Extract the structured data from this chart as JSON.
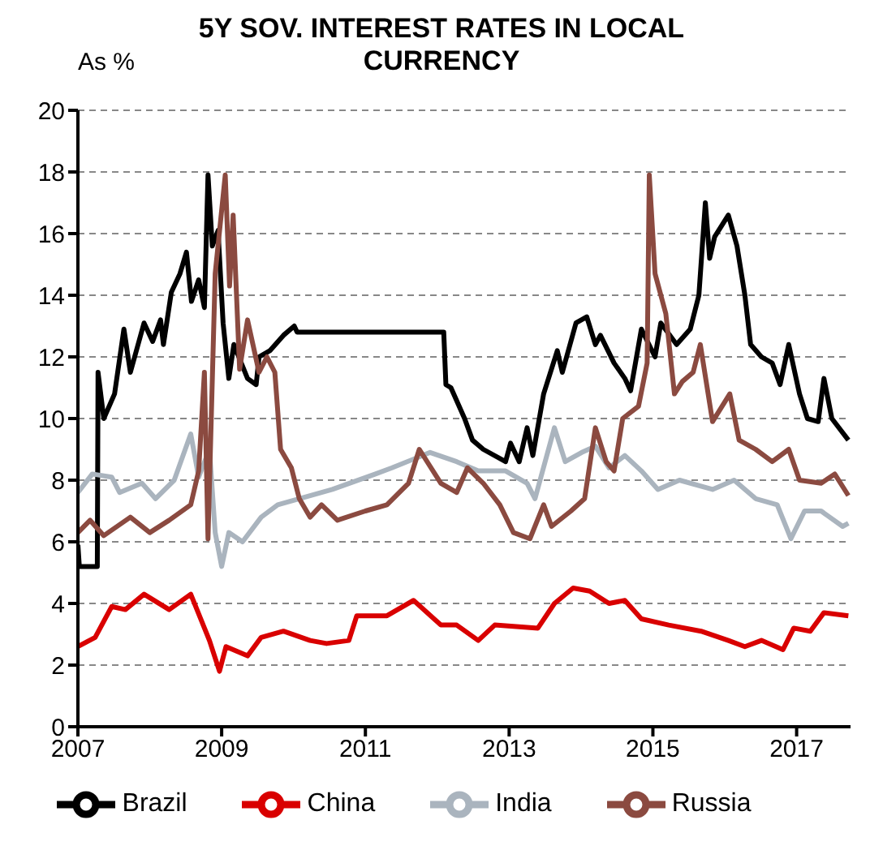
{
  "chart_data": {
    "type": "line",
    "title": "5Y SOV. INTEREST RATES IN LOCAL CURRENCY",
    "ylabel": "As %",
    "xlim": [
      2007,
      2017.75
    ],
    "xticks": [
      2007,
      2009,
      2011,
      2013,
      2015,
      2017
    ],
    "ylim": [
      0,
      20
    ],
    "yticks": [
      0,
      2,
      4,
      6,
      8,
      10,
      12,
      14,
      16,
      18,
      20
    ],
    "grid": "y",
    "legend": "bottom",
    "marker": "none",
    "line_style": "solid",
    "series": [
      {
        "name": "Brazil",
        "color": "#000000",
        "x": [
          2007,
          2007.02,
          2007.27,
          2007.28,
          2007.36,
          2007.51,
          2007.64,
          2007.73,
          2007.92,
          2008.04,
          2008.15,
          2008.19,
          2008.3,
          2008.42,
          2008.51,
          2008.58,
          2008.68,
          2008.76,
          2008.81,
          2008.87,
          2008.95,
          2009.02,
          2009.1,
          2009.17,
          2009.36,
          2009.48,
          2009.52,
          2009.67,
          2009.86,
          2010.01,
          2010.05,
          2012.09,
          2012.12,
          2012.19,
          2012.38,
          2012.49,
          2012.64,
          2012.95,
          2013.02,
          2013.14,
          2013.25,
          2013.33,
          2013.48,
          2013.67,
          2013.74,
          2013.93,
          2014.08,
          2014.2,
          2014.27,
          2014.46,
          2014.61,
          2014.69,
          2014.84,
          2015.03,
          2015.11,
          2015.33,
          2015.52,
          2015.64,
          2015.73,
          2015.79,
          2015.86,
          2016.05,
          2016.17,
          2016.28,
          2016.36,
          2016.51,
          2016.66,
          2016.77,
          2016.89,
          2017.04,
          2017.15,
          2017.3,
          2017.38,
          2017.49,
          2017.72
        ],
        "values": [
          5.9,
          5.2,
          5.2,
          11.5,
          10.0,
          10.8,
          12.9,
          11.5,
          13.1,
          12.5,
          13.2,
          12.4,
          14.1,
          14.7,
          15.4,
          13.8,
          14.5,
          13.6,
          17.9,
          15.6,
          16.1,
          13.1,
          11.3,
          12.4,
          11.3,
          11.1,
          12.0,
          12.2,
          12.7,
          13.0,
          12.8,
          12.8,
          11.1,
          11.0,
          10.0,
          9.3,
          9.0,
          8.6,
          9.2,
          8.6,
          9.7,
          8.8,
          10.8,
          12.2,
          11.5,
          13.1,
          13.3,
          12.4,
          12.7,
          11.8,
          11.3,
          10.9,
          12.9,
          12.0,
          13.1,
          12.4,
          12.9,
          14.0,
          17.0,
          15.2,
          15.9,
          16.6,
          15.6,
          14.0,
          12.4,
          12.0,
          11.8,
          11.1,
          12.4,
          10.8,
          10.0,
          9.9,
          11.3,
          10.0,
          9.3
        ]
      },
      {
        "name": "China",
        "color": "#d90000",
        "x": [
          2007,
          2007.24,
          2007.47,
          2007.66,
          2007.92,
          2008.27,
          2008.57,
          2008.83,
          2008.97,
          2009.06,
          2009.36,
          2009.55,
          2009.86,
          2010.23,
          2010.46,
          2010.77,
          2010.88,
          2011.3,
          2011.67,
          2012.05,
          2012.27,
          2012.57,
          2012.8,
          2013.4,
          2013.63,
          2013.89,
          2014.12,
          2014.39,
          2014.61,
          2014.84,
          2015.22,
          2015.67,
          2016.05,
          2016.28,
          2016.51,
          2016.81,
          2016.96,
          2017.19,
          2017.38,
          2017.72
        ],
        "values": [
          2.6,
          2.9,
          3.9,
          3.8,
          4.3,
          3.8,
          4.3,
          2.8,
          1.8,
          2.6,
          2.3,
          2.9,
          3.1,
          2.8,
          2.7,
          2.8,
          3.6,
          3.6,
          4.1,
          3.3,
          3.3,
          2.8,
          3.3,
          3.2,
          4.0,
          4.5,
          4.4,
          4.0,
          4.1,
          3.5,
          3.3,
          3.1,
          2.8,
          2.6,
          2.8,
          2.5,
          3.2,
          3.1,
          3.7,
          3.6
        ]
      },
      {
        "name": "India",
        "color": "#aab4be",
        "x": [
          2007,
          2007.2,
          2007.47,
          2007.58,
          2007.89,
          2008.08,
          2008.34,
          2008.57,
          2008.68,
          2008.83,
          2008.91,
          2009.0,
          2009.1,
          2009.29,
          2009.55,
          2009.78,
          2010.08,
          2010.54,
          2011.14,
          2011.37,
          2011.9,
          2012.27,
          2012.57,
          2012.95,
          2013.25,
          2013.36,
          2013.63,
          2013.78,
          2014.01,
          2014.2,
          2014.39,
          2014.61,
          2014.84,
          2015.07,
          2015.37,
          2015.83,
          2016.13,
          2016.43,
          2016.73,
          2016.92,
          2017.11,
          2017.34,
          2017.64,
          2017.72
        ],
        "values": [
          7.6,
          8.2,
          8.1,
          7.6,
          7.9,
          7.4,
          8.0,
          9.5,
          8.1,
          9.0,
          6.3,
          5.2,
          6.3,
          6.0,
          6.8,
          7.2,
          7.4,
          7.7,
          8.2,
          8.4,
          8.9,
          8.6,
          8.3,
          8.3,
          7.9,
          7.4,
          9.7,
          8.6,
          8.9,
          9.1,
          8.4,
          8.8,
          8.3,
          7.7,
          8.0,
          7.7,
          8.0,
          7.4,
          7.2,
          6.1,
          7.0,
          7.0,
          6.5,
          6.6
        ]
      },
      {
        "name": "Russia",
        "color": "#8b4a40",
        "x": [
          2007,
          2007.17,
          2007.36,
          2007.73,
          2008.0,
          2008.27,
          2008.57,
          2008.68,
          2008.76,
          2008.81,
          2008.91,
          2009.05,
          2009.11,
          2009.16,
          2009.25,
          2009.36,
          2009.52,
          2009.63,
          2009.74,
          2009.82,
          2009.97,
          2010.08,
          2010.23,
          2010.39,
          2010.61,
          2011.0,
          2011.3,
          2011.6,
          2011.75,
          2012.05,
          2012.27,
          2012.42,
          2012.64,
          2012.87,
          2013.06,
          2013.29,
          2013.48,
          2013.59,
          2013.86,
          2014.05,
          2014.2,
          2014.35,
          2014.46,
          2014.58,
          2014.8,
          2014.92,
          2014.95,
          2015.03,
          2015.18,
          2015.3,
          2015.41,
          2015.56,
          2015.66,
          2015.83,
          2016.07,
          2016.2,
          2016.43,
          2016.66,
          2016.89,
          2017.04,
          2017.34,
          2017.53,
          2017.72
        ],
        "values": [
          6.3,
          6.7,
          6.2,
          6.8,
          6.3,
          6.7,
          7.2,
          8.3,
          11.5,
          6.1,
          14.7,
          17.9,
          14.3,
          16.6,
          11.6,
          13.2,
          11.5,
          12.0,
          11.5,
          9.0,
          8.4,
          7.4,
          6.8,
          7.2,
          6.7,
          7.0,
          7.2,
          7.9,
          9.0,
          7.9,
          7.6,
          8.4,
          7.9,
          7.2,
          6.3,
          6.1,
          7.2,
          6.5,
          7.0,
          7.4,
          9.7,
          8.6,
          8.3,
          10.0,
          10.4,
          11.8,
          17.9,
          14.7,
          13.4,
          10.8,
          11.2,
          11.5,
          12.4,
          9.9,
          10.8,
          9.3,
          9.0,
          8.6,
          9.0,
          8.0,
          7.9,
          8.2,
          7.5
        ]
      }
    ]
  }
}
